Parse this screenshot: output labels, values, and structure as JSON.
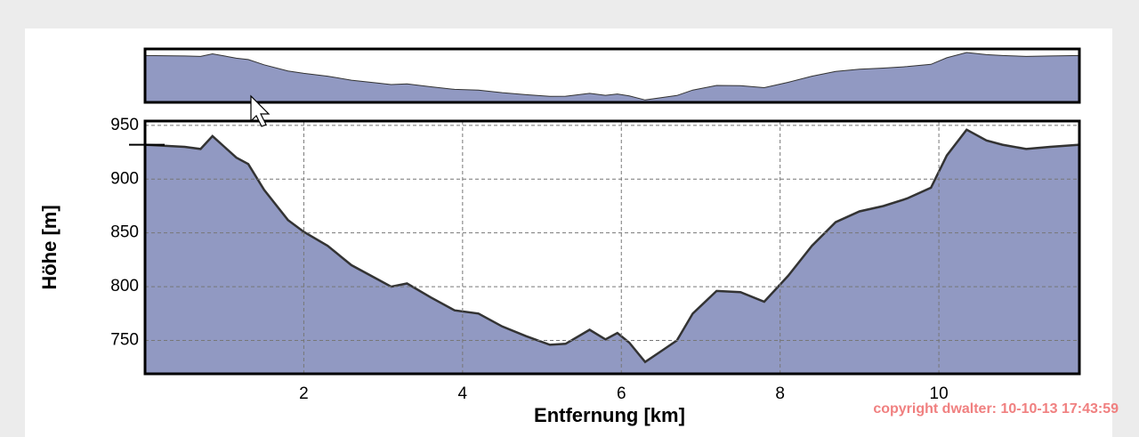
{
  "chart_data": {
    "type": "area",
    "x_label": "Entfernung [km]",
    "y_label": "Höhe [m]",
    "annotation": "copyright dwalter: 10-10-13 17:43:59",
    "x": [
      0,
      0.5,
      0.7,
      0.85,
      1.0,
      1.15,
      1.3,
      1.5,
      1.8,
      2.0,
      2.3,
      2.6,
      2.9,
      3.1,
      3.3,
      3.6,
      3.9,
      4.2,
      4.5,
      4.8,
      5.1,
      5.3,
      5.6,
      5.8,
      5.95,
      6.1,
      6.3,
      6.5,
      6.7,
      6.9,
      7.2,
      7.5,
      7.8,
      8.1,
      8.4,
      8.7,
      9.0,
      9.3,
      9.6,
      9.9,
      10.1,
      10.35,
      10.6,
      10.8,
      11.1,
      11.4,
      11.77
    ],
    "values": [
      932,
      930,
      928,
      940,
      930,
      920,
      914,
      890,
      862,
      851,
      838,
      820,
      808,
      800,
      803,
      790,
      778,
      775,
      763,
      754,
      746,
      747,
      760,
      751,
      757,
      748,
      730,
      740,
      750,
      775,
      796,
      795,
      786,
      810,
      838,
      860,
      870,
      875,
      882,
      892,
      922,
      946,
      936,
      932,
      928,
      930,
      932
    ],
    "color": "#9199c2",
    "xlim": [
      0,
      11.77
    ],
    "xticks": [
      2,
      4,
      6,
      8,
      10
    ],
    "ylim": [
      719,
      954
    ],
    "yticks": [
      750,
      800,
      850,
      900,
      950
    ],
    "grid": true
  }
}
